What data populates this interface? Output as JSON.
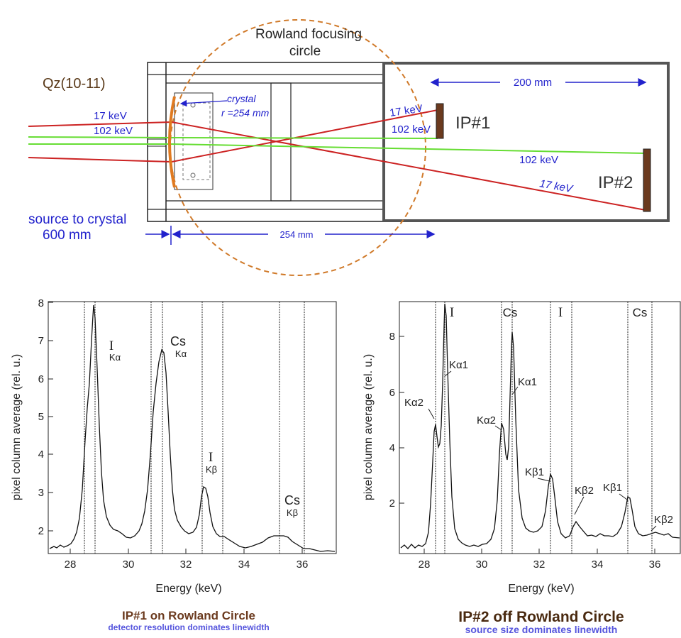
{
  "diagram": {
    "rowland_title_line1": "Rowland focusing",
    "rowland_title_line2": "circle",
    "crystal_name": "Qz(10-11)",
    "crystal_label": "crystal",
    "crystal_radius": "r =254 mm",
    "beam_17_left": "17 keV",
    "beam_102_left": "102 keV",
    "beam_17_ip1": "17 keV",
    "beam_102_ip1": "102 keV",
    "beam_102_ip2": "102 keV",
    "beam_17_ip2": "17 keV",
    "ip1": "IP#1",
    "ip2": "IP#2",
    "dist_200": "200 mm",
    "dist_254": "254 mm",
    "source_line1": "source to crystal",
    "source_line2": "600  mm",
    "colors": {
      "red_beam": "#cc2222",
      "green_beam": "#66dd33",
      "blue_text": "#2222cc",
      "circle": "#d07a2a",
      "brown": "#6b3a1e"
    }
  },
  "plots": [
    {
      "ylabel": "pixel column average (rel. u.)",
      "xlabel": "Energy (keV)",
      "x_ticks": [
        "28",
        "30",
        "32",
        "34",
        "36"
      ],
      "y_ticks": [
        "2",
        "3",
        "4",
        "5",
        "6",
        "7",
        "8"
      ],
      "caption_title": "IP#1 on Rowland Circle",
      "caption_sub": "detector resolution dominates linewidth",
      "annotations": {
        "i_ka_main": "I",
        "i_ka_sub": "Kα",
        "cs_ka_main": "Cs",
        "cs_ka_sub": "Kα",
        "i_kb_main": "I",
        "i_kb_sub": "Kβ",
        "cs_kb_main": "Cs",
        "cs_kb_sub": "Kβ"
      }
    },
    {
      "ylabel": "pixel column average (rel. u.)",
      "xlabel": "Energy (keV)",
      "x_ticks": [
        "28",
        "30",
        "32",
        "34",
        "36"
      ],
      "y_ticks": [
        "2",
        "4",
        "6",
        "8"
      ],
      "caption_title": "IP#2 off Rowland Circle",
      "caption_sub": "source size dominates linewidth",
      "annotations": {
        "i_top": "I",
        "cs_top": "Cs",
        "i_top2": "I",
        "cs_top2": "Cs",
        "ka2_i": "Kα2",
        "ka1_i": "Kα1",
        "ka2_cs": "Kα2",
        "ka1_cs": "Kα1",
        "kb1_i": "Kβ1",
        "kb2_i": "Kβ2",
        "kb1_cs": "Kβ1",
        "kb2_cs": "Kβ2"
      }
    }
  ]
}
